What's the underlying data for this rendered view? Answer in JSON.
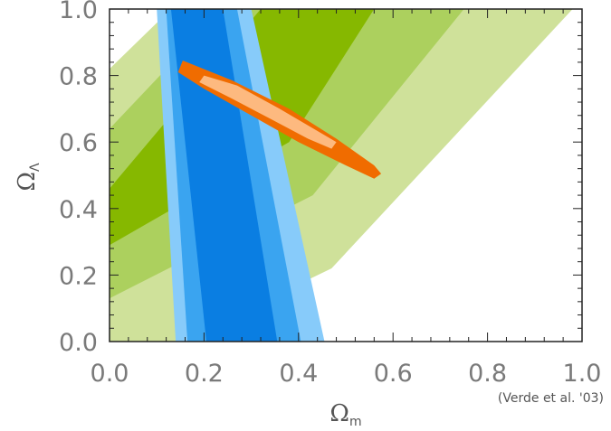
{
  "chart_data": {
    "type": "contour",
    "title": "",
    "xlabel": "Ω",
    "xlabel_sub": "m",
    "ylabel": "Ω",
    "ylabel_sub": "Λ",
    "xlim": [
      0.0,
      1.0
    ],
    "ylim": [
      0.0,
      1.0
    ],
    "xticks": [
      "0.0",
      "0.2",
      "0.4",
      "0.6",
      "0.8",
      "1.0"
    ],
    "yticks": [
      "0.0",
      "0.2",
      "0.4",
      "0.6",
      "0.8",
      "1.0"
    ],
    "annotation": "(Verde et al. '03)",
    "grid": false,
    "legend": "none",
    "regions": [
      {
        "color": "#cfe19a",
        "polygon": [
          [
            0.0,
            0.82
          ],
          [
            0.13,
            1.0
          ],
          [
            0.98,
            1.0
          ],
          [
            0.47,
            0.22
          ],
          [
            0.15,
            0.0
          ],
          [
            0.0,
            0.0
          ]
        ]
      },
      {
        "color": "#acd05e",
        "polygon": [
          [
            0.0,
            0.64
          ],
          [
            0.24,
            1.0
          ],
          [
            0.75,
            1.0
          ],
          [
            0.43,
            0.44
          ],
          [
            0.0,
            0.13
          ]
        ]
      },
      {
        "color": "#86b800",
        "polygon": [
          [
            0.0,
            0.46
          ],
          [
            0.32,
            1.0
          ],
          [
            0.56,
            1.0
          ],
          [
            0.38,
            0.6
          ],
          [
            0.0,
            0.29
          ]
        ]
      },
      {
        "color": "#87cbfa",
        "polygon": [
          [
            0.1,
            1.0
          ],
          [
            0.3,
            1.0
          ],
          [
            0.455,
            0.0
          ],
          [
            0.14,
            0.0
          ]
        ]
      },
      {
        "color": "#3aa4f0",
        "polygon": [
          [
            0.12,
            1.0
          ],
          [
            0.27,
            1.0
          ],
          [
            0.405,
            0.0
          ],
          [
            0.165,
            0.0
          ]
        ]
      },
      {
        "color": "#0a7ee2",
        "polygon": [
          [
            0.13,
            1.0
          ],
          [
            0.24,
            1.0
          ],
          [
            0.355,
            0.0
          ],
          [
            0.205,
            0.0
          ]
        ]
      },
      {
        "color": "#f06c00",
        "polygon": [
          [
            0.145,
            0.81
          ],
          [
            0.155,
            0.845
          ],
          [
            0.26,
            0.785
          ],
          [
            0.38,
            0.7
          ],
          [
            0.48,
            0.61
          ],
          [
            0.56,
            0.53
          ],
          [
            0.575,
            0.505
          ],
          [
            0.56,
            0.49
          ],
          [
            0.5,
            0.53
          ],
          [
            0.4,
            0.6
          ],
          [
            0.3,
            0.68
          ],
          [
            0.2,
            0.76
          ]
        ]
      },
      {
        "color": "#fdb97f",
        "polygon": [
          [
            0.19,
            0.78
          ],
          [
            0.2,
            0.8
          ],
          [
            0.27,
            0.77
          ],
          [
            0.36,
            0.7
          ],
          [
            0.45,
            0.625
          ],
          [
            0.48,
            0.6
          ],
          [
            0.47,
            0.58
          ],
          [
            0.42,
            0.61
          ],
          [
            0.34,
            0.67
          ],
          [
            0.26,
            0.73
          ]
        ]
      }
    ]
  }
}
